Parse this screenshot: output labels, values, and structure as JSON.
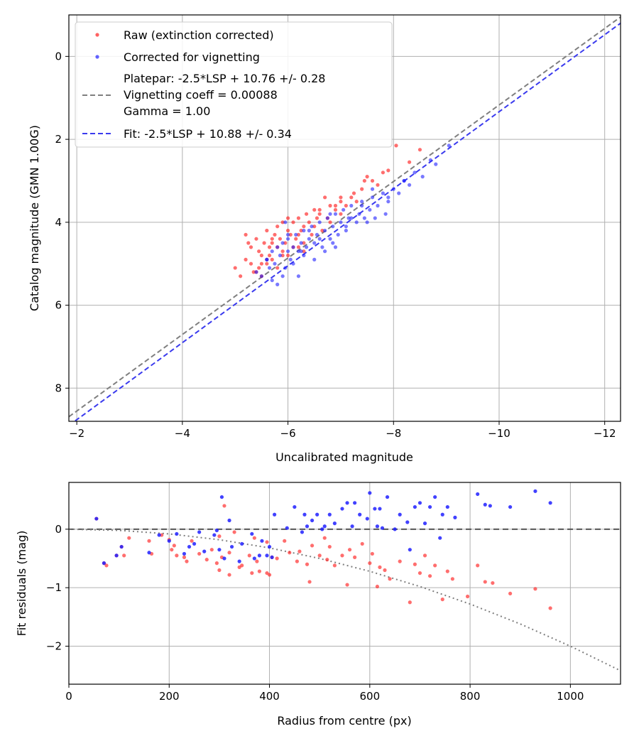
{
  "chart_data": [
    {
      "type": "scatter",
      "name": "calibration",
      "xlabel": "Uncalibrated magnitude",
      "ylabel": "Catalog magnitude (GMN 1.00G)",
      "xlim": [
        -1.85,
        -12.3
      ],
      "ylim": [
        8.8,
        -1.0
      ],
      "xticks": [
        -2,
        -4,
        -6,
        -8,
        -10,
        -12
      ],
      "xtick_labels": [
        "−2",
        "−4",
        "−6",
        "−8",
        "−10",
        "−12"
      ],
      "yticks": [
        0,
        2,
        4,
        6,
        8
      ],
      "ytick_labels": [
        "0",
        "2",
        "4",
        "6",
        "8"
      ],
      "grid": true,
      "legend_position": "top-left",
      "legend": {
        "raw": "Raw (extinction corrected)",
        "corrected": "Corrected for vignetting",
        "platepar_line1": "Platepar: -2.5*LSP + 10.76 +/- 0.28",
        "platepar_line2": "Vignetting coeff = 0.00088",
        "platepar_line3": "Gamma = 1.00",
        "fit": "Fit: -2.5*LSP + 10.88 +/- 0.34"
      },
      "colors": {
        "raw": "#ff2020",
        "corrected": "#2020ff",
        "platepar": "#7f7f7f",
        "fit": "#3a3aee"
      },
      "lines": [
        {
          "name": "Platepar",
          "x": [
            -1.85,
            -12.3
          ],
          "y": [
            8.69,
            -0.95
          ]
        },
        {
          "name": "Fit",
          "x": [
            -1.85,
            -12.3
          ],
          "y": [
            8.9,
            -0.8
          ]
        }
      ],
      "series": [
        {
          "name": "Raw (extinction corrected)",
          "x": [
            -5.0,
            -5.1,
            -5.2,
            -5.25,
            -5.3,
            -5.3,
            -5.35,
            -5.4,
            -5.45,
            -5.45,
            -5.5,
            -5.55,
            -5.6,
            -5.6,
            -5.65,
            -5.7,
            -5.7,
            -5.75,
            -5.8,
            -5.8,
            -5.85,
            -5.9,
            -5.9,
            -5.95,
            -6.0,
            -6.0,
            -6.05,
            -6.1,
            -6.15,
            -6.2,
            -6.2,
            -6.25,
            -6.3,
            -6.3,
            -6.35,
            -6.4,
            -6.45,
            -6.5,
            -6.5,
            -6.55,
            -6.6,
            -6.65,
            -6.7,
            -6.75,
            -6.8,
            -6.8,
            -6.9,
            -7.0,
            -7.0,
            -7.1,
            -7.2,
            -7.25,
            -7.3,
            -7.4,
            -7.45,
            -7.5,
            -7.6,
            -7.7,
            -7.8,
            -7.9,
            -8.05,
            -8.3,
            -8.5,
            -5.5,
            -5.6,
            -5.7,
            -5.4,
            -5.9,
            -6.1,
            -6.0,
            -5.8,
            -6.6,
            -7.0,
            -6.3,
            -5.2,
            -5.5,
            -5.65,
            -6.2,
            -6.9
          ],
          "y": [
            5.1,
            5.3,
            4.9,
            4.5,
            5.0,
            4.6,
            5.2,
            4.4,
            4.7,
            5.1,
            4.8,
            4.5,
            4.2,
            5.0,
            4.6,
            4.4,
            4.9,
            4.3,
            4.1,
            4.6,
            4.4,
            4.0,
            4.7,
            4.5,
            4.2,
            4.8,
            4.3,
            4.0,
            4.4,
            3.9,
            4.6,
            4.2,
            4.1,
            4.5,
            3.8,
            4.0,
            4.3,
            3.7,
            4.1,
            3.9,
            3.8,
            4.2,
            3.4,
            3.9,
            3.6,
            4.0,
            3.7,
            3.5,
            3.8,
            3.6,
            3.4,
            3.3,
            3.5,
            3.2,
            3.0,
            2.9,
            3.0,
            3.1,
            2.8,
            2.75,
            2.15,
            2.55,
            2.25,
            5.3,
            4.9,
            4.5,
            5.2,
            4.8,
            4.6,
            3.9,
            5.1,
            3.7,
            3.4,
            4.7,
            4.3,
            5.0,
            4.8,
            4.3,
            3.6
          ]
        },
        {
          "name": "Corrected for vignetting",
          "x": [
            -5.4,
            -5.5,
            -5.6,
            -5.65,
            -5.7,
            -5.75,
            -5.8,
            -5.85,
            -5.9,
            -5.95,
            -6.0,
            -6.0,
            -6.05,
            -6.1,
            -6.15,
            -6.2,
            -6.25,
            -6.3,
            -6.35,
            -6.4,
            -6.45,
            -6.5,
            -6.55,
            -6.6,
            -6.65,
            -6.7,
            -6.75,
            -6.8,
            -6.85,
            -6.9,
            -6.95,
            -7.0,
            -7.05,
            -7.1,
            -7.15,
            -7.2,
            -7.3,
            -7.35,
            -7.4,
            -7.5,
            -7.55,
            -7.6,
            -7.65,
            -7.7,
            -7.8,
            -7.85,
            -7.9,
            -8.0,
            -8.1,
            -8.2,
            -8.3,
            -8.4,
            -8.55,
            -8.7,
            -8.8,
            -9.05,
            -5.8,
            -5.9,
            -6.1,
            -6.3,
            -6.5,
            -6.7,
            -6.9,
            -7.1,
            -7.4,
            -7.6,
            -7.9,
            -6.2,
            -6.4,
            -6.8,
            -5.7,
            -6.0,
            -7.2,
            -6.6,
            -5.6,
            -5.95,
            -6.85,
            -7.45,
            -8.2,
            -6.25
          ],
          "y": [
            5.2,
            5.3,
            4.9,
            5.1,
            4.7,
            5.0,
            4.6,
            4.8,
            4.5,
            5.1,
            4.7,
            4.4,
            4.9,
            4.6,
            4.3,
            4.7,
            4.5,
            4.2,
            4.6,
            4.4,
            4.1,
            4.5,
            4.3,
            4.0,
            4.6,
            4.2,
            3.9,
            4.4,
            4.1,
            3.8,
            4.3,
            4.0,
            3.7,
            4.2,
            3.9,
            3.6,
            4.0,
            3.8,
            3.5,
            4.0,
            3.7,
            3.4,
            3.9,
            3.6,
            3.3,
            3.8,
            3.5,
            3.2,
            3.3,
            3.0,
            3.1,
            2.8,
            2.9,
            2.5,
            2.6,
            2.15,
            5.5,
            5.3,
            5.0,
            4.8,
            4.9,
            4.7,
            4.6,
            4.1,
            3.6,
            3.2,
            3.4,
            5.3,
            4.2,
            3.8,
            5.4,
            4.3,
            3.9,
            4.4,
            4.9,
            4.0,
            4.5,
            3.9,
            3.0,
            4.7
          ]
        }
      ]
    },
    {
      "type": "scatter",
      "name": "residuals",
      "xlabel": "Radius from centre (px)",
      "ylabel": "Fit residuals (mag)",
      "xlim": [
        0,
        1100
      ],
      "ylim": [
        -2.65,
        0.8
      ],
      "xticks": [
        0,
        200,
        400,
        600,
        800,
        1000
      ],
      "xtick_labels": [
        "0",
        "200",
        "400",
        "600",
        "800",
        "1000"
      ],
      "yticks": [
        0,
        -1,
        -2
      ],
      "ytick_labels": [
        "0",
        "−1",
        "−2"
      ],
      "grid": true,
      "colors": {
        "raw": "#ff2020",
        "corrected": "#2020ff",
        "zero_line": "#555555",
        "model": "#7f7f7f"
      },
      "model_curve": {
        "name": "vignetting model",
        "x": [
          0,
          100,
          200,
          300,
          400,
          500,
          600,
          700,
          800,
          900,
          1000,
          1100
        ],
        "y": [
          0,
          -0.02,
          -0.08,
          -0.18,
          -0.32,
          -0.5,
          -0.72,
          -0.98,
          -1.28,
          -1.62,
          -2.0,
          -2.42
        ]
      },
      "series": [
        {
          "name": "Raw (extinction corrected)",
          "x": [
            55,
            70,
            75,
            95,
            105,
            110,
            120,
            160,
            165,
            185,
            200,
            205,
            210,
            215,
            230,
            235,
            245,
            260,
            275,
            285,
            295,
            300,
            305,
            310,
            320,
            330,
            345,
            360,
            365,
            370,
            375,
            380,
            395,
            400,
            405,
            415,
            430,
            440,
            455,
            460,
            475,
            485,
            500,
            510,
            515,
            520,
            530,
            545,
            555,
            560,
            570,
            585,
            600,
            605,
            615,
            620,
            630,
            640,
            660,
            680,
            690,
            700,
            710,
            720,
            730,
            745,
            755,
            765,
            795,
            815,
            830,
            845,
            880,
            930,
            960,
            300,
            320,
            395,
            340,
            480
          ],
          "y": [
            0.18,
            -0.58,
            -0.62,
            -0.45,
            -0.3,
            -0.45,
            -0.15,
            -0.2,
            -0.42,
            -0.1,
            -0.18,
            -0.35,
            -0.28,
            -0.45,
            -0.48,
            -0.55,
            -0.2,
            -0.42,
            -0.52,
            -0.35,
            -0.58,
            -0.12,
            -0.48,
            0.4,
            -0.78,
            -0.05,
            -0.62,
            -0.45,
            -0.75,
            -0.15,
            -0.55,
            -0.72,
            -0.22,
            -0.78,
            -0.48,
            -0.5,
            -0.2,
            -0.4,
            -0.55,
            -0.38,
            -0.6,
            -0.28,
            -0.45,
            -0.15,
            -0.52,
            -0.3,
            -0.62,
            -0.45,
            -0.95,
            -0.35,
            -0.48,
            -0.25,
            -0.58,
            -0.42,
            -0.98,
            -0.65,
            -0.7,
            -0.85,
            -0.55,
            -1.25,
            -0.6,
            -0.75,
            -0.45,
            -0.8,
            -0.62,
            -1.2,
            -0.72,
            -0.85,
            -1.15,
            -0.62,
            -0.9,
            -0.92,
            -1.1,
            -1.02,
            -1.35,
            -0.7,
            -0.4,
            -0.75,
            -0.65,
            -0.9
          ]
        },
        {
          "name": "Corrected for vignetting",
          "x": [
            55,
            70,
            95,
            105,
            160,
            180,
            200,
            215,
            230,
            250,
            270,
            290,
            295,
            305,
            310,
            320,
            325,
            345,
            365,
            370,
            385,
            395,
            400,
            405,
            435,
            450,
            465,
            475,
            485,
            495,
            505,
            510,
            520,
            545,
            555,
            565,
            580,
            595,
            600,
            610,
            615,
            625,
            635,
            650,
            660,
            675,
            690,
            700,
            710,
            720,
            730,
            745,
            755,
            770,
            815,
            830,
            840,
            880,
            930,
            960,
            240,
            260,
            300,
            340,
            380,
            410,
            470,
            530,
            570,
            620,
            680,
            740
          ],
          "y": [
            0.18,
            -0.58,
            -0.45,
            -0.3,
            -0.4,
            -0.1,
            -0.2,
            -0.08,
            -0.42,
            -0.25,
            -0.38,
            -0.1,
            -0.02,
            0.55,
            -0.5,
            0.15,
            -0.3,
            -0.25,
            -0.08,
            -0.5,
            -0.2,
            -0.45,
            -0.3,
            -0.48,
            0.02,
            0.38,
            -0.05,
            0.05,
            0.15,
            0.25,
            0.0,
            0.05,
            0.25,
            0.35,
            0.45,
            0.05,
            0.25,
            0.18,
            0.62,
            0.35,
            0.05,
            0.02,
            0.55,
            0.0,
            0.25,
            0.12,
            0.38,
            0.45,
            0.1,
            0.38,
            0.55,
            0.25,
            0.38,
            0.2,
            0.6,
            0.42,
            0.4,
            0.38,
            0.65,
            0.45,
            -0.3,
            -0.05,
            -0.35,
            -0.55,
            -0.45,
            0.25,
            0.25,
            0.1,
            0.45,
            0.35,
            -0.35,
            -0.15
          ]
        }
      ]
    }
  ]
}
